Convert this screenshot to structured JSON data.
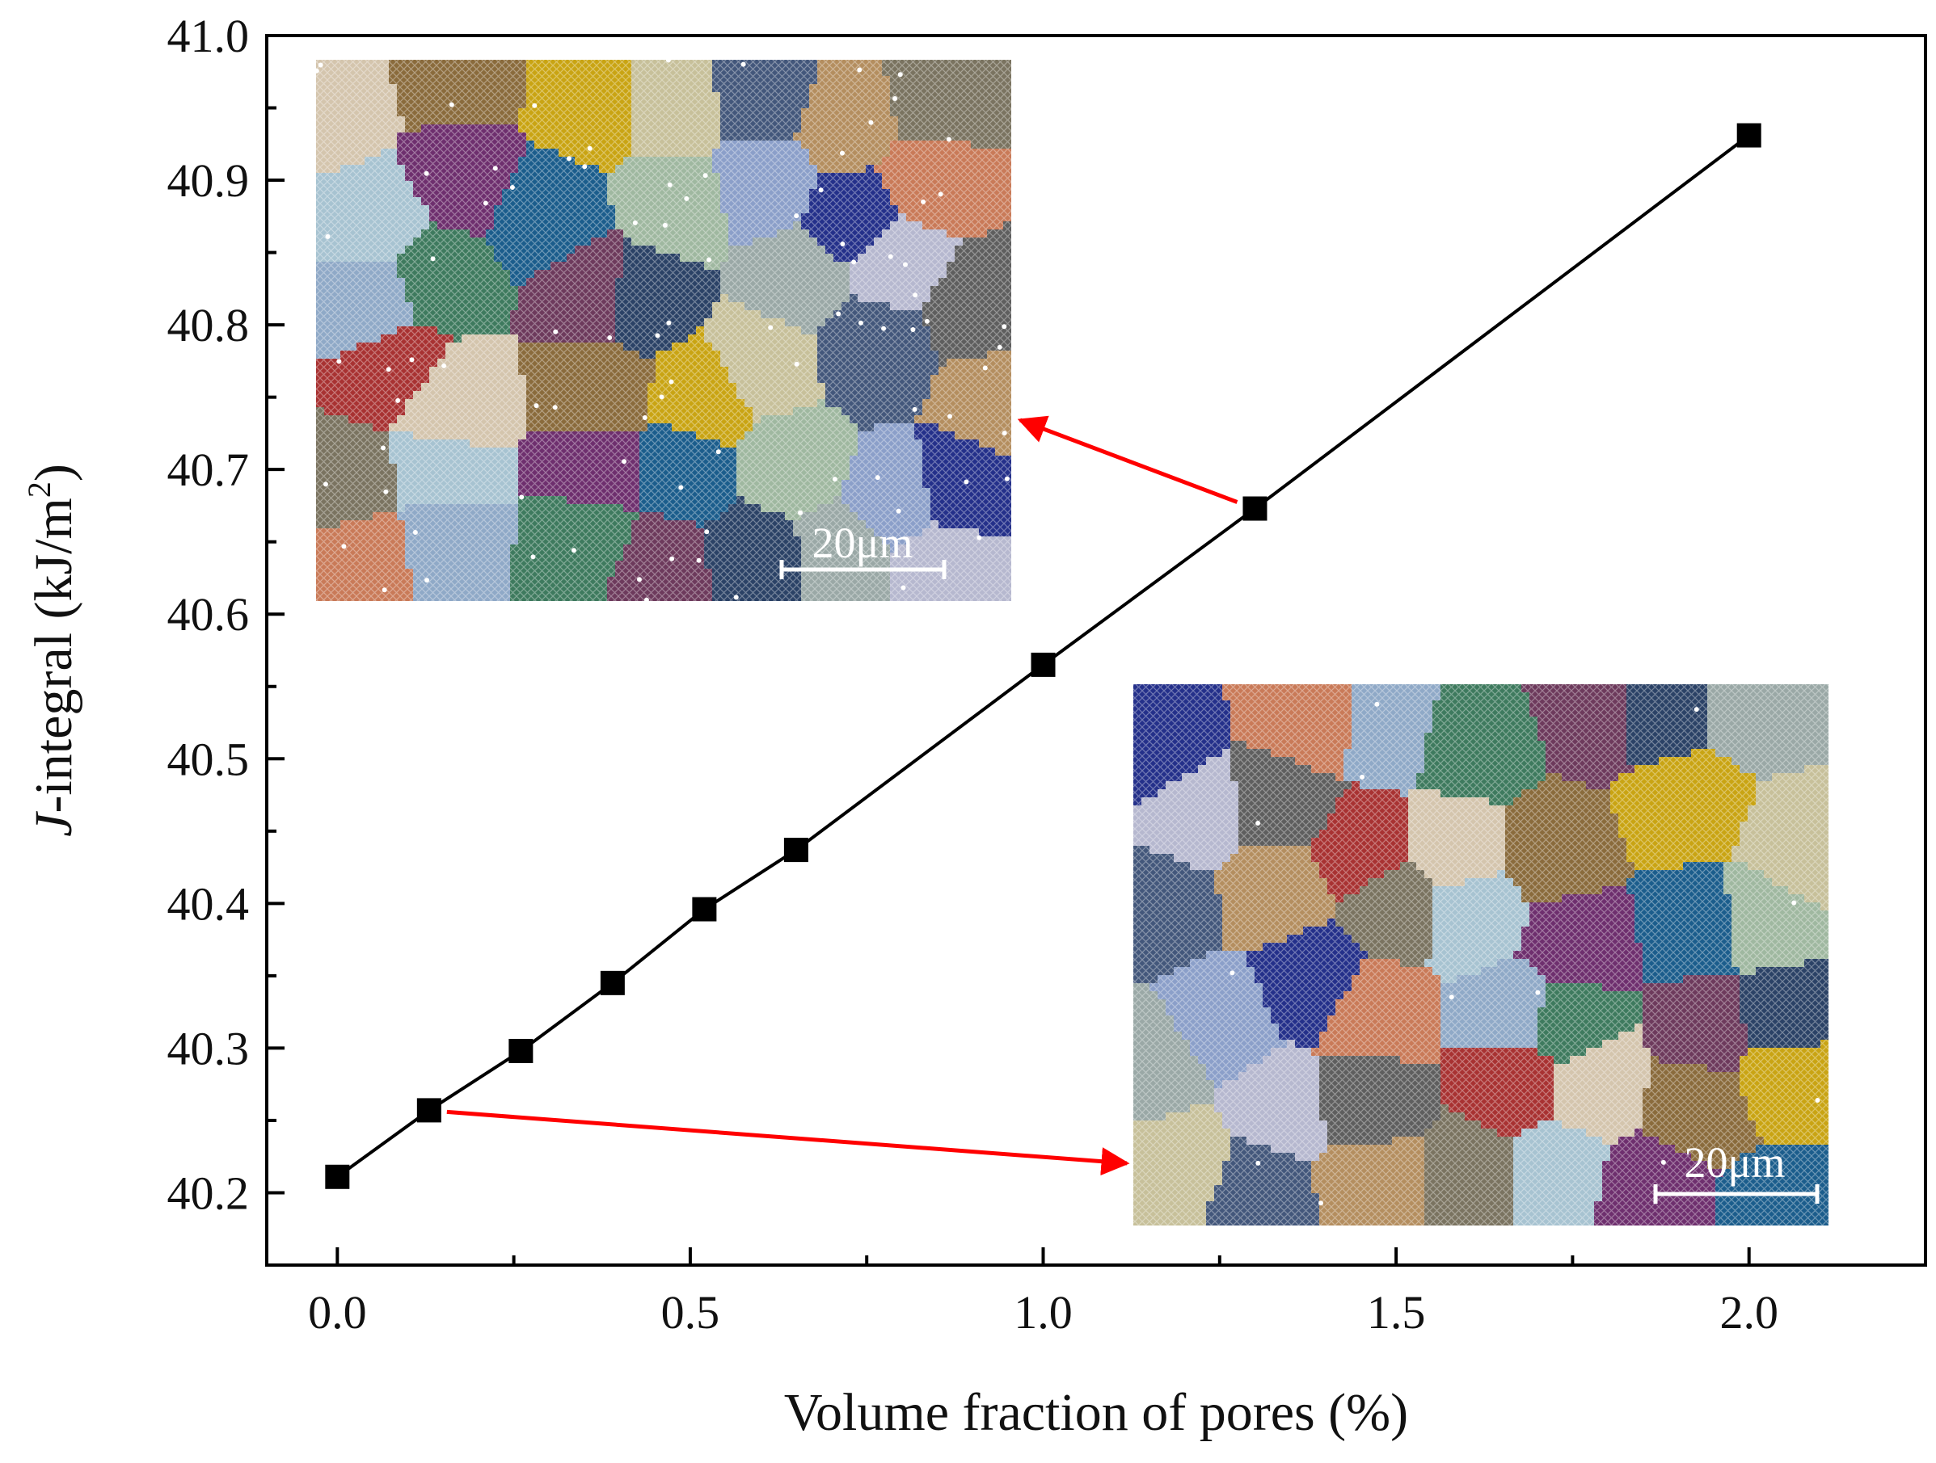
{
  "chart_data": {
    "type": "line",
    "xlabel": "Volume fraction of pores (%)",
    "ylabel": {
      "prefix": "J",
      "main": "-integral (kJ/m",
      "sup": "2",
      "suffix": ")"
    },
    "xlim": [
      -0.1,
      2.25
    ],
    "ylim": [
      40.15,
      41.0
    ],
    "xticks": [
      0.0,
      0.5,
      1.0,
      1.5,
      2.0
    ],
    "xtick_labels": [
      "0.0",
      "0.5",
      "1.0",
      "1.5",
      "2.0"
    ],
    "yticks": [
      40.2,
      40.3,
      40.4,
      40.5,
      40.6,
      40.7,
      40.8,
      40.9,
      41.0
    ],
    "ytick_labels": [
      "40.2",
      "40.3",
      "40.4",
      "40.5",
      "40.6",
      "40.7",
      "40.8",
      "40.9",
      "41.0"
    ],
    "grid": false,
    "series": [
      {
        "x": [
          0.0,
          0.13,
          0.26,
          0.39,
          0.52,
          0.65,
          1.0,
          1.3,
          2.0
        ],
        "y": [
          40.211,
          40.257,
          40.298,
          40.345,
          40.396,
          40.437,
          40.565,
          40.673,
          40.931
        ],
        "color": "#000000",
        "marker": "square"
      }
    ],
    "annotations": [
      {
        "kind": "microstructure-inset",
        "position": "top-left",
        "scale_bar": "20μm",
        "points_to": {
          "x": 1.3,
          "y": 40.673
        },
        "pores": "many"
      },
      {
        "kind": "microstructure-inset",
        "position": "bottom-right",
        "scale_bar": "20μm",
        "points_to": {
          "x": 0.13,
          "y": 40.257
        },
        "pores": "few"
      }
    ],
    "arrow_color": "#ff0000"
  }
}
